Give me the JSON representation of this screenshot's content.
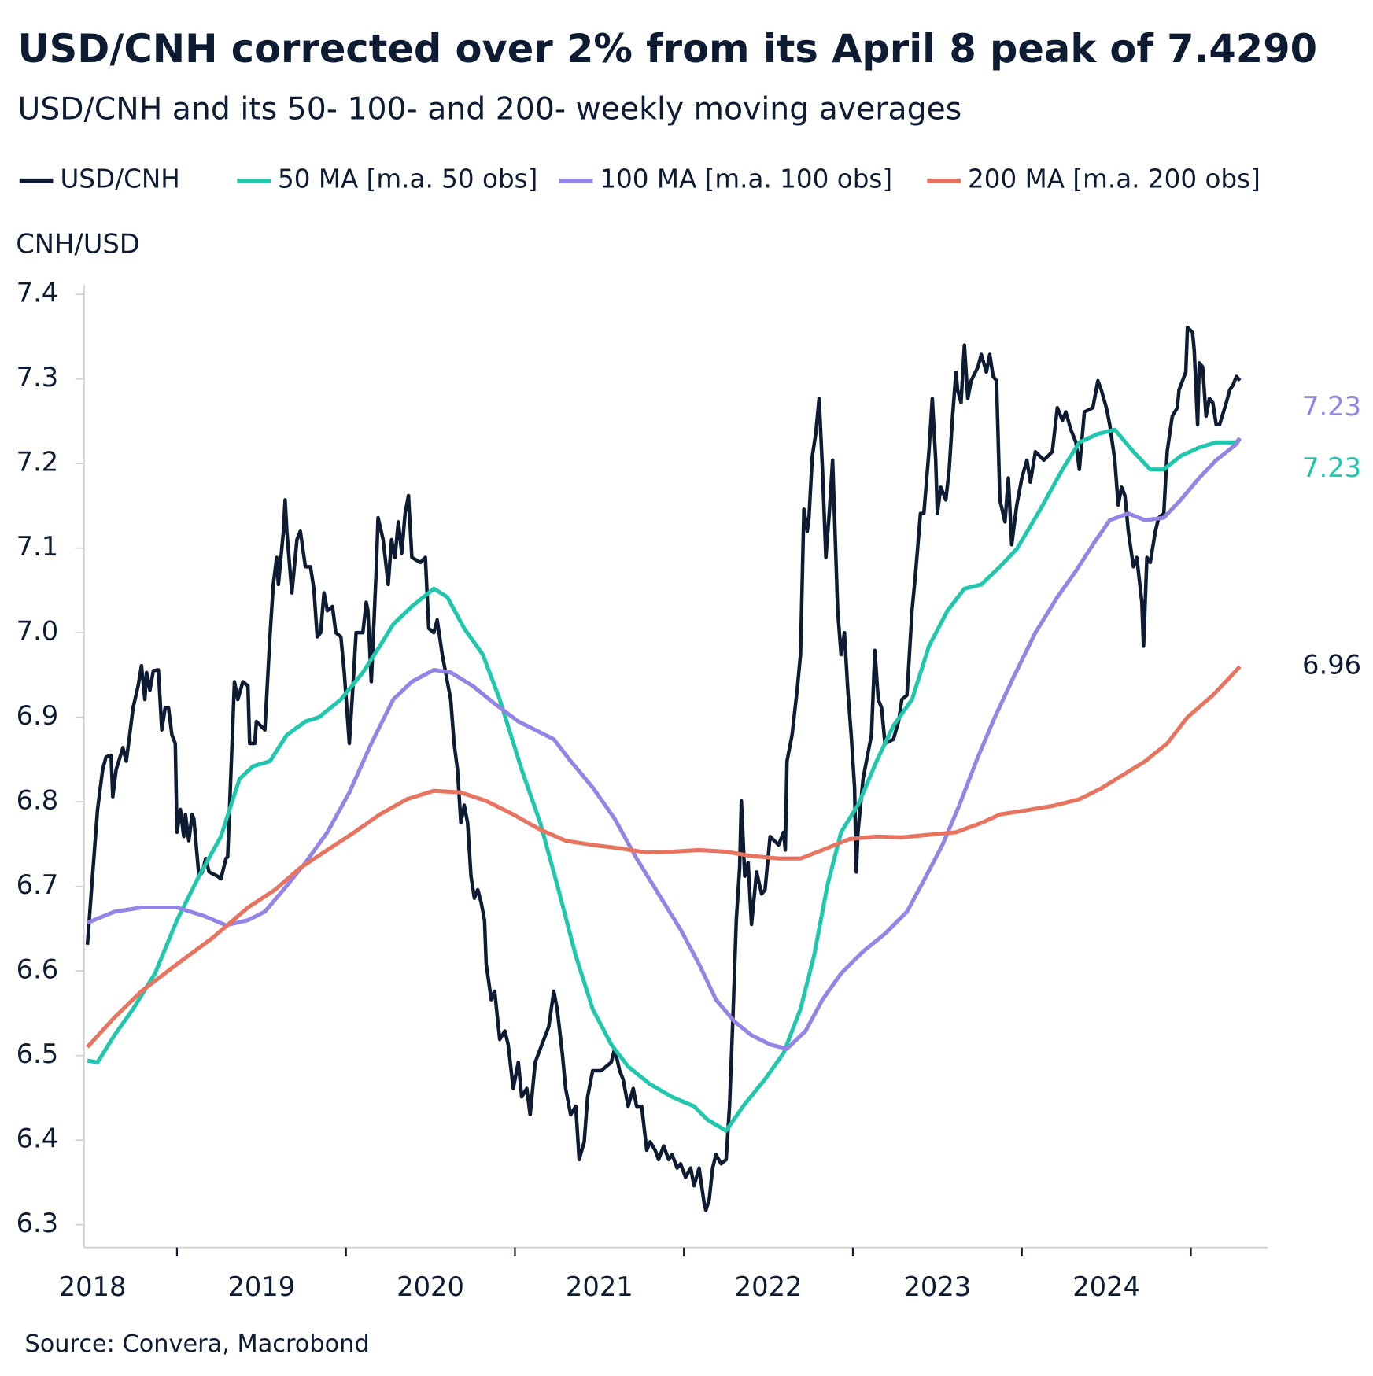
{
  "chart_data": {
    "type": "line",
    "title": "USD/CNH corrected over 2% from its April 8 peak of 7.4290",
    "subtitle": "USD/CNH and its 50- 100- and 200- weekly moving averages",
    "y_label": "CNH/USD",
    "source": "Source: Convera, Macrobond",
    "xlim": [
      2018.45,
      2025.455
    ],
    "xticks": [
      {
        "value": 2018.5,
        "label": "2018"
      },
      {
        "value": 2019.5,
        "label": "2019"
      },
      {
        "value": 2020.5,
        "label": "2020"
      },
      {
        "value": 2021.5,
        "label": "2021"
      },
      {
        "value": 2022.5,
        "label": "2022"
      },
      {
        "value": 2023.5,
        "label": "2023"
      },
      {
        "value": 2024.5,
        "label": "2024"
      }
    ],
    "xtick_marks": [
      2019,
      2020,
      2021,
      2022,
      2023,
      2024,
      2025
    ],
    "ylim": [
      6.273,
      7.411
    ],
    "yticks": [
      6.3,
      6.4,
      6.5,
      6.6,
      6.7,
      6.8,
      6.9,
      {
        "value": 7.0,
        "label": "7.0"
      },
      7.1,
      7.2,
      7.3,
      7.4
    ],
    "grid": false,
    "series": [
      {
        "name": "USD/CNH",
        "color": "#0d1b33",
        "x": [
          2018.47,
          2018.5,
          2018.53,
          2018.56,
          2018.58,
          2018.61,
          2018.62,
          2018.64,
          2018.68,
          2018.7,
          2018.72,
          2018.74,
          2018.77,
          2018.79,
          2018.81,
          2018.82,
          2018.84,
          2018.86,
          2018.89,
          2018.91,
          2018.93,
          2018.95,
          2018.97,
          2018.99,
          2019.0,
          2019.02,
          2019.04,
          2019.05,
          2019.07,
          2019.09,
          2019.1,
          2019.13,
          2019.15,
          2019.17,
          2019.19,
          2019.24,
          2019.26,
          2019.29,
          2019.3,
          2019.32,
          2019.34,
          2019.36,
          2019.39,
          2019.42,
          2019.43,
          2019.46,
          2019.47,
          2019.52,
          2019.55,
          2019.57,
          2019.59,
          2019.6,
          2019.63,
          2019.64,
          2019.65,
          2019.68,
          2019.71,
          2019.73,
          2019.76,
          2019.79,
          2019.81,
          2019.83,
          2019.85,
          2019.87,
          2019.89,
          2019.92,
          2019.94,
          2019.97,
          2019.99,
          2020.02,
          2020.04,
          2020.06,
          2020.1,
          2020.12,
          2020.13,
          2020.15,
          2020.18,
          2020.19,
          2020.22,
          2020.25,
          2020.27,
          2020.29,
          2020.31,
          2020.33,
          2020.35,
          2020.37,
          2020.39,
          2020.44,
          2020.47,
          2020.49,
          2020.52,
          2020.54,
          2020.57,
          2020.6,
          2020.62,
          2020.64,
          2020.66,
          2020.68,
          2020.7,
          2020.72,
          2020.74,
          2020.76,
          2020.78,
          2020.8,
          2020.82,
          2020.83,
          2020.86,
          2020.88,
          2020.91,
          2020.94,
          2020.96,
          2020.99,
          2021.02,
          2021.04,
          2021.07,
          2021.09,
          2021.12,
          2021.15,
          2021.2,
          2021.23,
          2021.25,
          2021.28,
          2021.3,
          2021.33,
          2021.36,
          2021.38,
          2021.41,
          2021.43,
          2021.46,
          2021.51,
          2021.57,
          2021.59,
          2021.62,
          2021.64,
          2021.67,
          2021.7,
          2021.72,
          2021.75,
          2021.78,
          2021.8,
          2021.83,
          2021.85,
          2021.88,
          2021.91,
          2021.93,
          2021.96,
          2021.98,
          2022.01,
          2022.04,
          2022.06,
          2022.09,
          2022.12,
          2022.13,
          2022.15,
          2022.17,
          2022.19,
          2022.22,
          2022.25,
          2022.27,
          2022.29,
          2022.31,
          2022.33,
          2022.34,
          2022.36,
          2022.38,
          2022.4,
          2022.43,
          2022.46,
          2022.48,
          2022.51,
          2022.56,
          2022.59,
          2022.6,
          2022.61,
          2022.64,
          2022.67,
          2022.69,
          2022.71,
          2022.73,
          2022.74,
          2022.76,
          2022.78,
          2022.8,
          2022.82,
          2022.84,
          2022.86,
          2022.88,
          2022.91,
          2022.93,
          2022.95,
          2022.97,
          2022.99,
          2023.01,
          2023.02,
          2023.03,
          2023.06,
          2023.08,
          2023.11,
          2023.13,
          2023.15,
          2023.17,
          2023.19,
          2023.24,
          2023.27,
          2023.29,
          2023.32,
          2023.35,
          2023.37,
          2023.4,
          2023.42,
          2023.45,
          2023.47,
          2023.49,
          2023.5,
          2023.52,
          2023.55,
          2023.57,
          2023.59,
          2023.61,
          2023.62,
          2023.64,
          2023.66,
          2023.68,
          2023.7,
          2023.74,
          2023.76,
          2023.79,
          2023.81,
          2023.83,
          2023.85,
          2023.87,
          2023.9,
          2023.92,
          2023.94,
          2023.96,
          2023.97,
          2024.0,
          2024.03,
          2024.05,
          2024.08,
          2024.13,
          2024.18,
          2024.21,
          2024.24,
          2024.26,
          2024.29,
          2024.32,
          2024.34,
          2024.37,
          2024.42,
          2024.45,
          2024.47,
          2024.5,
          2024.52,
          2024.55,
          2024.57,
          2024.59,
          2024.61,
          2024.63,
          2024.66,
          2024.68,
          2024.71,
          2024.72,
          2024.74,
          2024.76,
          2024.79,
          2024.81,
          2024.84,
          2024.86,
          2024.89,
          2024.92,
          2024.93,
          2024.97,
          2024.98,
          2025.01,
          2025.02,
          2025.04,
          2025.05,
          2025.07,
          2025.09,
          2025.11,
          2025.13,
          2025.15,
          2025.17,
          2025.21,
          2025.23,
          2025.25,
          2025.27,
          2025.29
        ],
        "values": [
          6.631,
          6.712,
          6.791,
          6.838,
          6.853,
          6.855,
          6.806,
          6.838,
          6.864,
          6.848,
          6.879,
          6.911,
          6.937,
          6.961,
          6.921,
          6.953,
          6.932,
          6.955,
          6.956,
          6.885,
          6.911,
          6.911,
          6.879,
          6.869,
          6.764,
          6.791,
          6.759,
          6.785,
          6.754,
          6.785,
          6.78,
          6.712,
          6.717,
          6.733,
          6.717,
          6.712,
          6.709,
          6.733,
          6.735,
          6.838,
          6.942,
          6.921,
          6.942,
          6.937,
          6.869,
          6.869,
          6.895,
          6.885,
          6.995,
          7.057,
          7.089,
          7.057,
          7.12,
          7.157,
          7.12,
          7.047,
          7.11,
          7.12,
          7.078,
          7.078,
          7.052,
          6.995,
          7.0,
          7.047,
          7.026,
          7.031,
          7.0,
          6.995,
          6.953,
          6.869,
          6.932,
          7.0,
          7.0,
          7.036,
          7.026,
          6.942,
          7.078,
          7.136,
          7.11,
          7.057,
          7.11,
          7.089,
          7.131,
          7.094,
          7.141,
          7.162,
          7.089,
          7.083,
          7.089,
          7.005,
          7.0,
          7.015,
          6.974,
          6.942,
          6.921,
          6.869,
          6.838,
          6.775,
          6.796,
          6.775,
          6.712,
          6.686,
          6.696,
          6.681,
          6.66,
          6.608,
          6.566,
          6.576,
          6.519,
          6.529,
          6.513,
          6.461,
          6.492,
          6.451,
          6.461,
          6.43,
          6.492,
          6.508,
          6.534,
          6.576,
          6.555,
          6.503,
          6.461,
          6.43,
          6.44,
          6.377,
          6.398,
          6.451,
          6.482,
          6.482,
          6.492,
          6.508,
          6.482,
          6.472,
          6.44,
          6.461,
          6.44,
          6.44,
          6.388,
          6.398,
          6.388,
          6.377,
          6.393,
          6.377,
          6.383,
          6.367,
          6.372,
          6.356,
          6.367,
          6.346,
          6.367,
          6.325,
          6.317,
          6.33,
          6.367,
          6.383,
          6.372,
          6.377,
          6.44,
          6.545,
          6.66,
          6.723,
          6.801,
          6.712,
          6.728,
          6.655,
          6.717,
          6.691,
          6.696,
          6.759,
          6.749,
          6.764,
          6.743,
          6.848,
          6.879,
          6.932,
          6.974,
          7.146,
          7.12,
          7.136,
          7.209,
          7.235,
          7.277,
          7.193,
          7.089,
          7.141,
          7.204,
          7.026,
          6.974,
          7.0,
          6.932,
          6.879,
          6.817,
          6.717,
          6.764,
          6.827,
          6.848,
          6.879,
          6.979,
          6.921,
          6.911,
          6.869,
          6.874,
          6.895,
          6.921,
          6.926,
          7.026,
          7.068,
          7.141,
          7.141,
          7.214,
          7.277,
          7.204,
          7.141,
          7.172,
          7.157,
          7.193,
          7.256,
          7.308,
          7.287,
          7.272,
          7.34,
          7.277,
          7.298,
          7.314,
          7.329,
          7.308,
          7.329,
          7.303,
          7.298,
          7.157,
          7.131,
          7.183,
          7.104,
          7.136,
          7.151,
          7.183,
          7.204,
          7.178,
          7.214,
          7.204,
          7.214,
          7.266,
          7.251,
          7.261,
          7.24,
          7.225,
          7.193,
          7.261,
          7.266,
          7.298,
          7.287,
          7.266,
          7.246,
          7.204,
          7.151,
          7.172,
          7.162,
          7.12,
          7.078,
          7.089,
          7.036,
          6.984,
          7.089,
          7.083,
          7.12,
          7.136,
          7.141,
          7.214,
          7.256,
          7.266,
          7.287,
          7.308,
          7.361,
          7.355,
          7.334,
          7.246,
          7.319,
          7.314,
          7.256,
          7.277,
          7.272,
          7.246,
          7.246,
          7.272,
          7.287,
          7.293,
          7.303,
          7.298
        ]
      },
      {
        "name": "50 MA [m.a. 50 obs]",
        "color": "#1fc7ad",
        "end_label": "7.23",
        "x": [
          2018.47,
          2018.53,
          2018.63,
          2018.74,
          2018.87,
          2019.0,
          2019.13,
          2019.26,
          2019.37,
          2019.45,
          2019.55,
          2019.65,
          2019.76,
          2019.84,
          2019.97,
          2020.1,
          2020.2,
          2020.28,
          2020.39,
          2020.52,
          2020.6,
          2020.7,
          2020.81,
          2020.91,
          2021.04,
          2021.15,
          2021.25,
          2021.36,
          2021.46,
          2021.57,
          2021.67,
          2021.8,
          2021.93,
          2022.06,
          2022.14,
          2022.25,
          2022.35,
          2022.48,
          2022.59,
          2022.69,
          2022.77,
          2022.85,
          2022.93,
          2023.03,
          2023.14,
          2023.24,
          2023.35,
          2023.45,
          2023.56,
          2023.66,
          2023.76,
          2023.87,
          2023.97,
          2024.11,
          2024.24,
          2024.34,
          2024.45,
          2024.55,
          2024.66,
          2024.76,
          2024.84,
          2024.94,
          2025.05,
          2025.15,
          2025.27,
          2025.29
        ],
        "values": [
          6.494,
          6.492,
          6.524,
          6.555,
          6.597,
          6.66,
          6.712,
          6.759,
          6.827,
          6.842,
          6.848,
          6.879,
          6.895,
          6.9,
          6.921,
          6.953,
          6.984,
          7.01,
          7.031,
          7.052,
          7.042,
          7.005,
          6.974,
          6.921,
          6.838,
          6.775,
          6.702,
          6.618,
          6.555,
          6.513,
          6.487,
          6.466,
          6.451,
          6.44,
          6.424,
          6.411,
          6.44,
          6.472,
          6.503,
          6.555,
          6.618,
          6.702,
          6.764,
          6.796,
          6.848,
          6.89,
          6.921,
          6.984,
          7.026,
          7.052,
          7.057,
          7.078,
          7.099,
          7.146,
          7.193,
          7.225,
          7.235,
          7.24,
          7.214,
          7.193,
          7.193,
          7.209,
          7.219,
          7.225,
          7.225,
          7.23
        ]
      },
      {
        "name": "100 MA [m.a. 100 obs]",
        "color": "#9484e6",
        "end_label": "7.23",
        "x": [
          2018.47,
          2018.63,
          2018.79,
          2019.0,
          2019.16,
          2019.29,
          2019.42,
          2019.52,
          2019.63,
          2019.76,
          2019.89,
          2020.02,
          2020.15,
          2020.28,
          2020.39,
          2020.52,
          2020.62,
          2020.75,
          2020.88,
          2021.02,
          2021.12,
          2021.23,
          2021.33,
          2021.46,
          2021.59,
          2021.72,
          2021.85,
          2021.98,
          2022.09,
          2022.19,
          2022.3,
          2022.4,
          2022.51,
          2022.61,
          2022.72,
          2022.82,
          2022.93,
          2023.06,
          2023.19,
          2023.32,
          2023.42,
          2023.53,
          2023.63,
          2023.74,
          2023.84,
          2023.95,
          2024.08,
          2024.21,
          2024.32,
          2024.42,
          2024.52,
          2024.63,
          2024.73,
          2024.84,
          2024.94,
          2025.05,
          2025.15,
          2025.27,
          2025.29
        ],
        "values": [
          6.657,
          6.67,
          6.675,
          6.675,
          6.665,
          6.654,
          6.66,
          6.67,
          6.696,
          6.728,
          6.764,
          6.811,
          6.869,
          6.921,
          6.942,
          6.956,
          6.953,
          6.937,
          6.916,
          6.895,
          6.885,
          6.874,
          6.848,
          6.817,
          6.78,
          6.733,
          6.691,
          6.649,
          6.608,
          6.566,
          6.54,
          6.524,
          6.513,
          6.508,
          6.529,
          6.566,
          6.597,
          6.623,
          6.644,
          6.67,
          6.707,
          6.749,
          6.796,
          6.853,
          6.9,
          6.947,
          7.0,
          7.042,
          7.073,
          7.104,
          7.133,
          7.141,
          7.133,
          7.136,
          7.157,
          7.183,
          7.204,
          7.223,
          7.23
        ]
      },
      {
        "name": "200 MA [m.a. 200 obs]",
        "color": "#e8735f",
        "end_label": "6.96",
        "x": [
          2018.47,
          2018.63,
          2018.79,
          2019.0,
          2019.21,
          2019.42,
          2019.58,
          2019.73,
          2019.89,
          2020.05,
          2020.2,
          2020.36,
          2020.52,
          2020.68,
          2020.83,
          2020.99,
          2021.15,
          2021.3,
          2021.46,
          2021.62,
          2021.78,
          2021.93,
          2022.09,
          2022.25,
          2022.4,
          2022.56,
          2022.69,
          2022.82,
          2022.98,
          2023.14,
          2023.29,
          2023.45,
          2023.61,
          2023.76,
          2023.87,
          2024.03,
          2024.18,
          2024.34,
          2024.47,
          2024.6,
          2024.73,
          2024.86,
          2024.98,
          2025.13,
          2025.23,
          2025.29
        ],
        "values": [
          6.51,
          6.545,
          6.576,
          6.608,
          6.639,
          6.675,
          6.696,
          6.722,
          6.743,
          6.764,
          6.785,
          6.803,
          6.813,
          6.811,
          6.801,
          6.785,
          6.767,
          6.754,
          6.749,
          6.745,
          6.74,
          6.741,
          6.743,
          6.741,
          6.736,
          6.733,
          6.733,
          6.743,
          6.756,
          6.759,
          6.758,
          6.761,
          6.764,
          6.775,
          6.785,
          6.79,
          6.795,
          6.803,
          6.816,
          6.832,
          6.848,
          6.869,
          6.9,
          6.926,
          6.947,
          6.96
        ]
      }
    ]
  }
}
